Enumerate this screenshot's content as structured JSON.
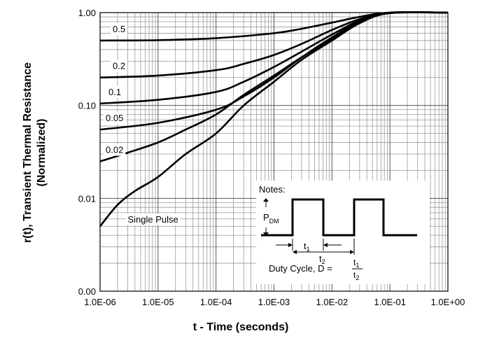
{
  "chart_data": {
    "type": "line",
    "xlabel": "t - Time (seconds)",
    "ylabel_line1": "r(t), Transient Thermal Resistance",
    "ylabel_line2": "(Normalized)",
    "x_scale": "log",
    "y_scale": "log",
    "xlim": [
      1e-06,
      1
    ],
    "ylim": [
      0.001,
      1
    ],
    "grid": true,
    "x_tick_values": [
      1e-06,
      1e-05,
      0.0001,
      0.001,
      0.01,
      0.1,
      1
    ],
    "x_tick_labels": [
      "1.0E-06",
      "1.0E-05",
      "1.0E-04",
      "1.0E-03",
      "1.0E-02",
      "1.0E-01",
      "1.0E+00"
    ],
    "y_tick_values": [
      0.001,
      0.01,
      0.1,
      1
    ],
    "y_tick_labels": [
      "0.00",
      "0.01",
      "0.10",
      "1.00"
    ],
    "series": [
      {
        "name": "0.5",
        "x": [
          1e-06,
          1e-05,
          0.0001,
          0.001,
          0.003,
          0.01,
          0.03,
          0.1,
          1
        ],
        "y": [
          0.5,
          0.505,
          0.53,
          0.6,
          0.67,
          0.78,
          0.9,
          1.0,
          1.0
        ]
      },
      {
        "name": "0.2",
        "x": [
          1e-06,
          1e-05,
          0.0001,
          0.0003,
          0.001,
          0.003,
          0.01,
          0.03,
          0.1,
          1
        ],
        "y": [
          0.2,
          0.21,
          0.24,
          0.28,
          0.35,
          0.46,
          0.65,
          0.85,
          1.0,
          1.0
        ]
      },
      {
        "name": "0.1",
        "x": [
          1e-06,
          1e-05,
          0.0001,
          0.0003,
          0.001,
          0.003,
          0.01,
          0.03,
          0.1,
          1
        ],
        "y": [
          0.105,
          0.115,
          0.14,
          0.18,
          0.26,
          0.38,
          0.58,
          0.82,
          0.99,
          1.0
        ]
      },
      {
        "name": "0.05",
        "x": [
          1e-06,
          1e-05,
          0.0001,
          0.0003,
          0.001,
          0.003,
          0.01,
          0.03,
          0.1,
          1
        ],
        "y": [
          0.055,
          0.065,
          0.09,
          0.125,
          0.2,
          0.33,
          0.54,
          0.8,
          0.99,
          1.0
        ]
      },
      {
        "name": "0.02",
        "x": [
          1e-06,
          3e-06,
          1e-05,
          3e-05,
          0.0001,
          0.0003,
          0.001,
          0.003,
          0.01,
          0.03,
          0.1,
          1
        ],
        "y": [
          0.025,
          0.031,
          0.04,
          0.055,
          0.08,
          0.13,
          0.21,
          0.33,
          0.52,
          0.78,
          0.99,
          1.0
        ]
      },
      {
        "name": "Single Pulse",
        "x": [
          1e-06,
          2e-06,
          4e-06,
          1e-05,
          3e-05,
          0.0001,
          0.0003,
          0.001,
          0.003,
          0.01,
          0.03,
          0.1,
          1
        ],
        "y": [
          0.005,
          0.0085,
          0.012,
          0.017,
          0.03,
          0.05,
          0.1,
          0.18,
          0.31,
          0.5,
          0.77,
          0.99,
          1.0
        ]
      }
    ],
    "annotations": {
      "notes_title": "Notes:",
      "pdm_label": "P",
      "pdm_sub": "DM",
      "t1_label": "t",
      "t1_sub": "1",
      "t2_label": "t",
      "t2_sub": "2",
      "duty_text": "Duty Cycle, D =",
      "frac_num": "t",
      "frac_num_sub": "1",
      "frac_den": "t",
      "frac_den_sub": "2"
    }
  }
}
